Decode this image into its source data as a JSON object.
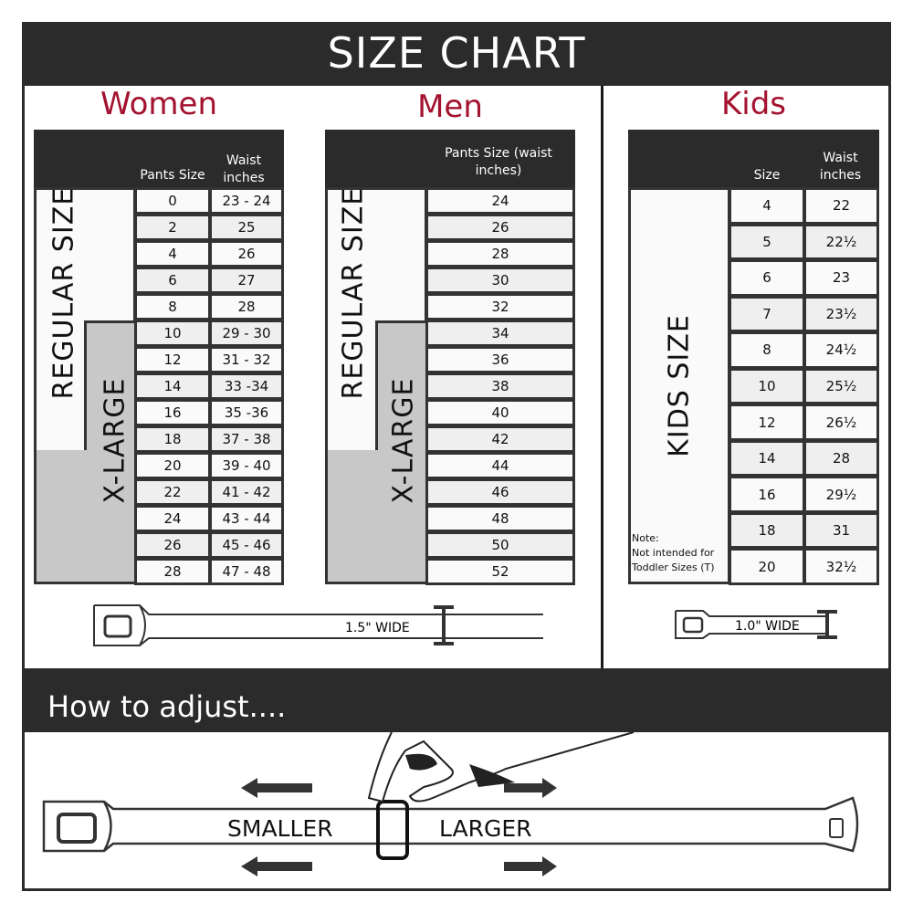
{
  "title": "SIZE CHART",
  "women": {
    "heading": "Women",
    "col1": "Pants Size",
    "col2": "Waist inches",
    "regular_label": "REGULAR SIZE",
    "xlarge_label": "X-LARGE",
    "rows": [
      [
        "0",
        "23 - 24"
      ],
      [
        "2",
        "25"
      ],
      [
        "4",
        "26"
      ],
      [
        "6",
        "27"
      ],
      [
        "8",
        "28"
      ],
      [
        "10",
        "29 - 30"
      ],
      [
        "12",
        "31 - 32"
      ],
      [
        "14",
        "33 -34"
      ],
      [
        "16",
        "35 -36"
      ],
      [
        "18",
        "37 - 38"
      ],
      [
        "20",
        "39 - 40"
      ],
      [
        "22",
        "41 - 42"
      ],
      [
        "24",
        "43 - 44"
      ],
      [
        "26",
        "45 - 46"
      ],
      [
        "28",
        "47 - 48"
      ]
    ],
    "belt_width": "1.5\" WIDE"
  },
  "men": {
    "heading": "Men",
    "col1": "Pants Size (waist inches)",
    "regular_label": "REGULAR SIZE",
    "xlarge_label": "X-LARGE",
    "rows": [
      "24",
      "26",
      "28",
      "30",
      "32",
      "34",
      "36",
      "38",
      "40",
      "42",
      "44",
      "46",
      "48",
      "50",
      "52"
    ]
  },
  "kids": {
    "heading": "Kids",
    "col1": "Size",
    "col2": "Waist inches",
    "label": "KIDS SIZE",
    "note": [
      "Note:",
      "Not intended for",
      "Toddler Sizes (T)"
    ],
    "rows": [
      [
        "4",
        "22"
      ],
      [
        "5",
        "22½"
      ],
      [
        "6",
        "23"
      ],
      [
        "7",
        "23½"
      ],
      [
        "8",
        "24½"
      ],
      [
        "10",
        "25½"
      ],
      [
        "12",
        "26½"
      ],
      [
        "14",
        "28"
      ],
      [
        "16",
        "29½"
      ],
      [
        "18",
        "31"
      ],
      [
        "20",
        "32½"
      ]
    ],
    "belt_width": "1.0\" WIDE"
  },
  "adjust": {
    "heading": "How to adjust....",
    "smaller": "SMALLER",
    "larger": "LARGER"
  },
  "colors": {
    "dark": "#2b2b2b",
    "accent": "#a3122f",
    "xlarge": "#c8c8c8",
    "row_light": "#fafafa",
    "row_alt": "#efefef"
  }
}
